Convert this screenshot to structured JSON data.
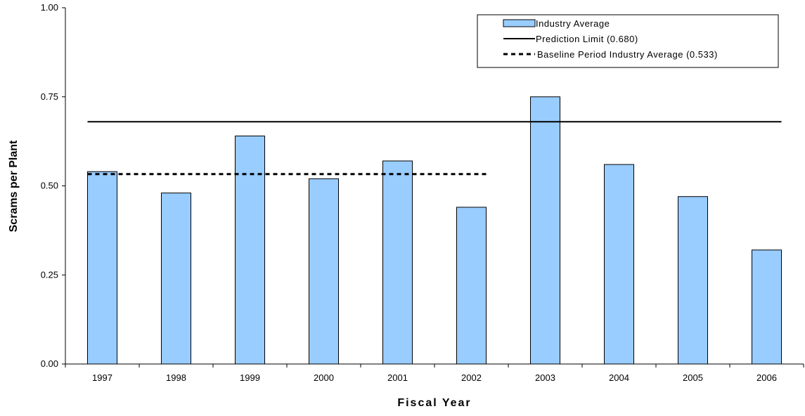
{
  "chart_data": {
    "type": "bar",
    "title": "",
    "xlabel": "Fiscal Year",
    "ylabel": "Scrams per Plant",
    "ylim": [
      0,
      1
    ],
    "yticks": [
      "0.00",
      "0.25",
      "0.50",
      "0.75",
      "1.00"
    ],
    "ytick_values": [
      0,
      0.25,
      0.5,
      0.75,
      1.0
    ],
    "categories": [
      "1997",
      "1998",
      "1999",
      "2000",
      "2001",
      "2002",
      "2003",
      "2004",
      "2005",
      "2006"
    ],
    "series": [
      {
        "name": "Industry Average",
        "values": [
          0.54,
          0.48,
          0.64,
          0.52,
          0.57,
          0.44,
          0.75,
          0.56,
          0.47,
          0.32
        ],
        "color": "#99ccff"
      }
    ],
    "reference_lines": [
      {
        "name": "Prediction Limit (0.680)",
        "value": 0.68,
        "style": "solid",
        "from_category": "1997",
        "to_category": "2006"
      },
      {
        "name": "Baseline Period Industry Average (0.533)",
        "value": 0.533,
        "style": "dashed",
        "from_category": "1997",
        "to_category": "2002"
      }
    ],
    "legend_position": "top-right",
    "grid": false
  }
}
